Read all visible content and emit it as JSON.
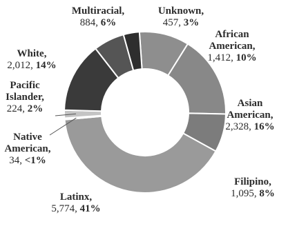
{
  "chart_data": {
    "type": "pie",
    "variant": "donut",
    "title": "",
    "total_label": "",
    "slices": [
      {
        "name": "African American",
        "count": "1,412",
        "percent": "10%",
        "value": 10.0,
        "color": "#8e8e8e"
      },
      {
        "name": "Asian American",
        "count": "2,328",
        "percent": "16%",
        "value": 16.5,
        "color": "#888888"
      },
      {
        "name": "Filipino",
        "count": "1,095",
        "percent": "8%",
        "value": 7.7,
        "color": "#7c7c7c"
      },
      {
        "name": "Latinx",
        "count": "5,774",
        "percent": "41%",
        "value": 40.6,
        "color": "#9a9a9a"
      },
      {
        "name": "Native American",
        "count": "34",
        "percent": "<1%",
        "value": 0.3,
        "color": "#b2b2b2"
      },
      {
        "name": "Pacific Islander",
        "count": "224",
        "percent": "2%",
        "value": 1.6,
        "color": "#c4c4c4"
      },
      {
        "name": "White",
        "count": "2,012",
        "percent": "14%",
        "value": 14.1,
        "color": "#3a3a3a"
      },
      {
        "name": "Multiracial",
        "count": "884",
        "percent": "6%",
        "value": 6.2,
        "color": "#555555"
      },
      {
        "name": "Unknown",
        "count": "457",
        "percent": "3%",
        "value": 3.2,
        "color": "#2e2e2e"
      }
    ],
    "legend": "none"
  }
}
